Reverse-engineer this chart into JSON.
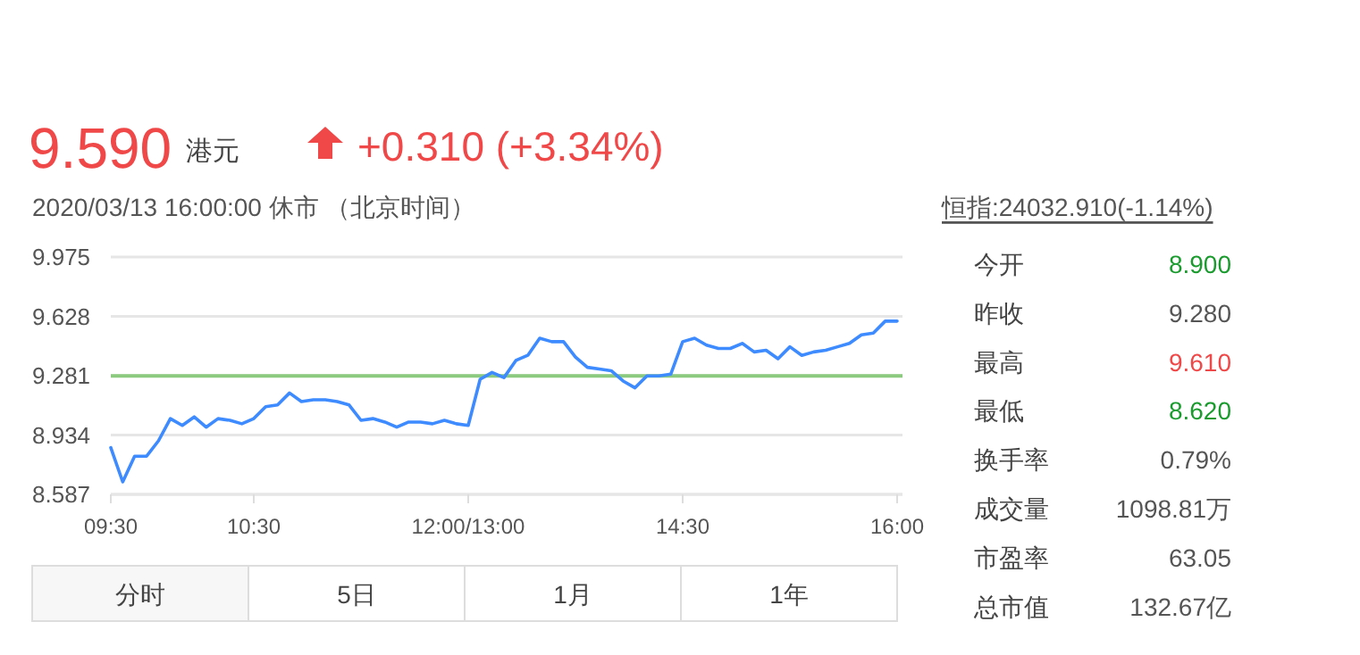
{
  "chart_data": {
    "type": "line",
    "title": "9.590",
    "subtitle": "2020/03/13 16:00:00  休市  （北京时间）",
    "categories": [
      "09:30",
      null,
      null,
      null,
      null,
      null,
      null,
      null,
      null,
      null,
      null,
      null,
      "10:30",
      null,
      null,
      null,
      null,
      null,
      null,
      null,
      null,
      null,
      null,
      null,
      null,
      null,
      null,
      null,
      null,
      null,
      "12:00/13:00",
      null,
      null,
      null,
      null,
      null,
      null,
      null,
      null,
      null,
      null,
      null,
      null,
      null,
      null,
      null,
      null,
      null,
      "14:30",
      null,
      null,
      null,
      null,
      null,
      null,
      null,
      null,
      null,
      null,
      null,
      null,
      null,
      null,
      null,
      null,
      null,
      "16:00"
    ],
    "series": [
      {
        "color": "#3d8bff",
        "values": [
          8.86,
          8.66,
          8.81,
          8.81,
          8.9,
          9.03,
          8.99,
          9.04,
          8.98,
          9.03,
          9.02,
          9.0,
          9.03,
          9.1,
          9.11,
          9.18,
          9.13,
          9.14,
          9.14,
          9.13,
          9.11,
          9.02,
          9.03,
          9.01,
          8.98,
          9.01,
          9.01,
          9.0,
          9.02,
          9.0,
          8.99,
          9.26,
          9.3,
          9.27,
          9.37,
          9.4,
          9.5,
          9.48,
          9.48,
          9.39,
          9.33,
          9.32,
          9.31,
          9.25,
          9.21,
          9.28,
          9.28,
          9.29,
          9.48,
          9.5,
          9.46,
          9.44,
          9.44,
          9.47,
          9.42,
          9.43,
          9.38,
          9.45,
          9.4,
          9.42,
          9.43,
          9.45,
          9.47,
          9.52,
          9.53,
          9.6,
          9.6
        ]
      }
    ],
    "ylim": [
      8.587,
      9.975
    ],
    "yticks": [
      8.587,
      8.934,
      9.281,
      9.628,
      9.975
    ],
    "grid": "y",
    "ref_lines": [
      {
        "axis": "y",
        "value": 9.28,
        "color": "#8ccb7f"
      }
    ],
    "annotations": [
      "港元",
      "+0.310 (+3.34%)",
      "恒指:24032.910(-1.14%)",
      "今开",
      "8.900",
      "昨收",
      "9.280",
      "最高",
      "9.610",
      "最低",
      "8.620",
      "换手率",
      "0.79%",
      "成交量",
      "1098.81万",
      "市盈率",
      "63.05",
      "总市值",
      "132.67亿",
      "分时",
      "5日",
      "1月",
      "1年"
    ]
  }
}
